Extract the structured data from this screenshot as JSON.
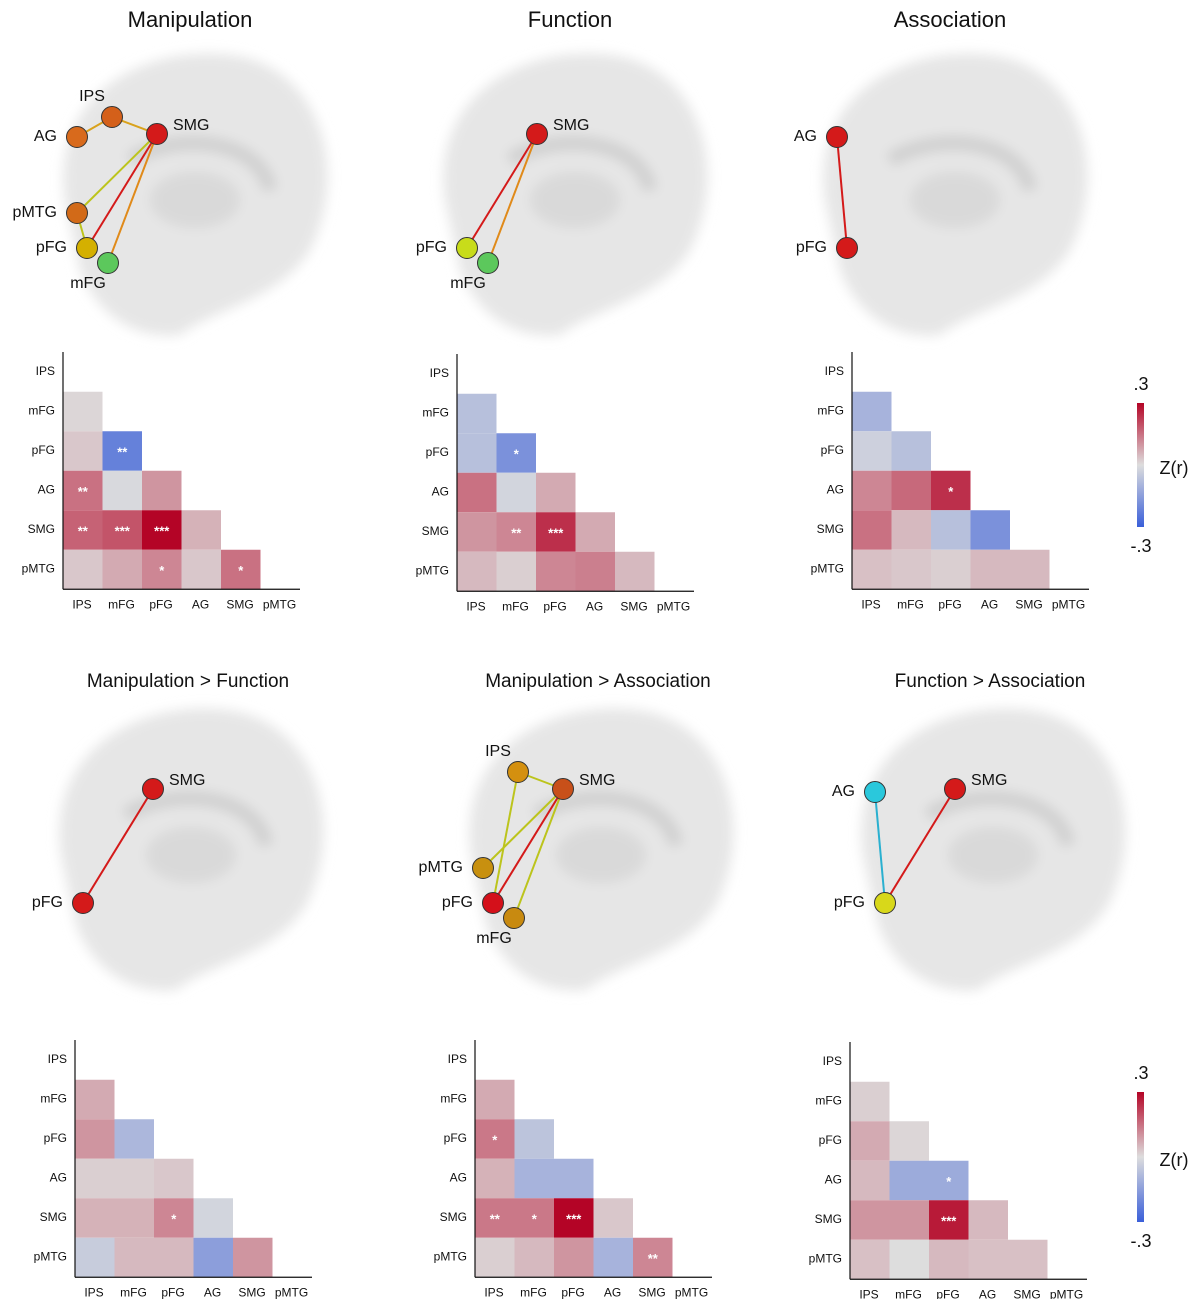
{
  "chart_data": [
    {
      "type": "heatmap",
      "title": "Manipulation",
      "network": {
        "nodes": [
          {
            "label": "IPS",
            "color": "#d4601a"
          },
          {
            "label": "AG",
            "color": "#d86a1c"
          },
          {
            "label": "SMG",
            "color": "#d41a1a"
          },
          {
            "label": "pMTG",
            "color": "#d26a18"
          },
          {
            "label": "pFG",
            "color": "#d4b000"
          },
          {
            "label": "mFG",
            "color": "#5cc85c"
          }
        ],
        "edges": [
          {
            "from": "AG",
            "to": "IPS",
            "color": "#d9a21c"
          },
          {
            "from": "IPS",
            "to": "SMG",
            "color": "#d9a21c"
          },
          {
            "from": "SMG",
            "to": "pMTG",
            "color": "#bcc41c"
          },
          {
            "from": "SMG",
            "to": "pFG",
            "color": "#d41a1a"
          },
          {
            "from": "SMG",
            "to": "mFG",
            "color": "#e08a1a"
          },
          {
            "from": "pMTG",
            "to": "pFG",
            "color": "#bcc41c"
          }
        ]
      },
      "categories": [
        "IPS",
        "mFG",
        "pFG",
        "AG",
        "SMG",
        "pMTG"
      ],
      "values": [
        [],
        [
          0.01
        ],
        [
          0.03,
          -0.22
        ],
        [
          0.15,
          -0.01,
          0.1
        ],
        [
          0.17,
          0.19,
          0.3,
          0.06
        ],
        [
          0.03,
          0.07,
          0.12,
          0.03,
          0.15
        ]
      ],
      "stars": [
        [],
        [
          null
        ],
        [
          null,
          "**"
        ],
        [
          "**",
          null,
          null
        ],
        [
          "**",
          "***",
          "***",
          null
        ],
        [
          null,
          null,
          "*",
          null,
          "*"
        ]
      ],
      "zlim": [
        -0.3,
        0.3
      ],
      "cmap": [
        "#3a5fd9",
        "#dddddd",
        "#b40426"
      ]
    },
    {
      "type": "heatmap",
      "title": "Function",
      "network": {
        "nodes": [
          {
            "label": "SMG",
            "color": "#d41a1a"
          },
          {
            "label": "pFG",
            "color": "#c8dc1a"
          },
          {
            "label": "mFG",
            "color": "#5cc85c"
          }
        ],
        "edges": [
          {
            "from": "SMG",
            "to": "pFG",
            "color": "#d41a1a"
          },
          {
            "from": "SMG",
            "to": "mFG",
            "color": "#e08a1a"
          }
        ]
      },
      "categories": [
        "IPS",
        "mFG",
        "pFG",
        "AG",
        "SMG",
        "pMTG"
      ],
      "values": [
        [],
        [
          -0.07
        ],
        [
          -0.07,
          -0.18
        ],
        [
          0.15,
          -0.02,
          0.07
        ],
        [
          0.1,
          0.12,
          0.24,
          0.07
        ],
        [
          0.05,
          0.02,
          0.12,
          0.13,
          0.05
        ]
      ],
      "stars": [
        [],
        [
          null
        ],
        [
          null,
          "*"
        ],
        [
          null,
          null,
          null
        ],
        [
          null,
          "**",
          "***",
          null
        ],
        [
          null,
          null,
          null,
          null,
          null
        ]
      ],
      "zlim": [
        -0.3,
        0.3
      ],
      "cmap": [
        "#3a5fd9",
        "#dddddd",
        "#b40426"
      ]
    },
    {
      "type": "heatmap",
      "title": "Association",
      "network": {
        "nodes": [
          {
            "label": "AG",
            "color": "#d41a1a"
          },
          {
            "label": "pFG",
            "color": "#d41a1a"
          }
        ],
        "edges": [
          {
            "from": "AG",
            "to": "pFG",
            "color": "#d41a1a"
          }
        ]
      },
      "categories": [
        "IPS",
        "mFG",
        "pFG",
        "AG",
        "SMG",
        "pMTG"
      ],
      "values": [
        [],
        [
          -0.1
        ],
        [
          -0.03,
          -0.07
        ],
        [
          0.12,
          0.16,
          0.24
        ],
        [
          0.15,
          0.05,
          -0.07,
          -0.18
        ],
        [
          0.04,
          0.03,
          0.02,
          0.05,
          0.05
        ]
      ],
      "stars": [
        [],
        [
          null
        ],
        [
          null,
          null
        ],
        [
          null,
          null,
          "*"
        ],
        [
          null,
          null,
          null,
          null
        ],
        [
          null,
          null,
          null,
          null,
          null
        ]
      ],
      "zlim": [
        -0.3,
        0.3
      ],
      "cmap": [
        "#3a5fd9",
        "#dddddd",
        "#b40426"
      ],
      "colorbar": {
        "label": "Z(r)",
        "ticks": [
          {
            "value": 0.3,
            "label": ".3"
          },
          {
            "value": -0.3,
            "label": "-.3"
          }
        ]
      }
    },
    {
      "type": "heatmap",
      "title": "Manipulation > Function",
      "network": {
        "nodes": [
          {
            "label": "SMG",
            "color": "#d41a1a"
          },
          {
            "label": "pFG",
            "color": "#d41a1a"
          }
        ],
        "edges": [
          {
            "from": "SMG",
            "to": "pFG",
            "color": "#d41a1a"
          }
        ]
      },
      "categories": [
        "IPS",
        "mFG",
        "pFG",
        "AG",
        "SMG",
        "pMTG"
      ],
      "values": [
        [],
        [
          0.07
        ],
        [
          0.1,
          -0.09
        ],
        [
          0.02,
          0.02,
          0.03
        ],
        [
          0.06,
          0.06,
          0.12,
          -0.02
        ],
        [
          -0.04,
          0.05,
          0.05,
          -0.15,
          0.1
        ]
      ],
      "stars": [
        [],
        [
          null
        ],
        [
          null,
          null
        ],
        [
          null,
          null,
          null
        ],
        [
          null,
          null,
          "*",
          null
        ],
        [
          null,
          null,
          null,
          null,
          null
        ]
      ],
      "zlim": [
        -0.3,
        0.3
      ],
      "cmap": [
        "#3a5fd9",
        "#dddddd",
        "#b40426"
      ]
    },
    {
      "type": "heatmap",
      "title": "Manipulation > Association",
      "network": {
        "nodes": [
          {
            "label": "IPS",
            "color": "#d4900f"
          },
          {
            "label": "SMG",
            "color": "#c8501a"
          },
          {
            "label": "pMTG",
            "color": "#c8900f"
          },
          {
            "label": "pFG",
            "color": "#d4101a"
          },
          {
            "label": "mFG",
            "color": "#c88a10"
          }
        ],
        "edges": [
          {
            "from": "IPS",
            "to": "SMG",
            "color": "#bcc41c"
          },
          {
            "from": "IPS",
            "to": "pFG",
            "color": "#bcc41c"
          },
          {
            "from": "SMG",
            "to": "pMTG",
            "color": "#bcc41c"
          },
          {
            "from": "SMG",
            "to": "pFG",
            "color": "#d41a1a"
          },
          {
            "from": "SMG",
            "to": "mFG",
            "color": "#bcc41c"
          }
        ]
      },
      "categories": [
        "IPS",
        "mFG",
        "pFG",
        "AG",
        "SMG",
        "pMTG"
      ],
      "values": [
        [],
        [
          0.07
        ],
        [
          0.14,
          -0.06
        ],
        [
          0.06,
          -0.1,
          -0.1
        ],
        [
          0.14,
          0.14,
          0.3,
          0.03
        ],
        [
          0.02,
          0.05,
          0.1,
          -0.1,
          0.12
        ]
      ],
      "stars": [
        [],
        [
          null
        ],
        [
          "*",
          null
        ],
        [
          null,
          null,
          null
        ],
        [
          "**",
          "*",
          "***",
          null
        ],
        [
          null,
          null,
          null,
          null,
          "**"
        ]
      ],
      "zlim": [
        -0.3,
        0.3
      ],
      "cmap": [
        "#3a5fd9",
        "#dddddd",
        "#b40426"
      ]
    },
    {
      "type": "heatmap",
      "title": "Function > Association",
      "network": {
        "nodes": [
          {
            "label": "AG",
            "color": "#2ac8dc"
          },
          {
            "label": "SMG",
            "color": "#d41a1a"
          },
          {
            "label": "pFG",
            "color": "#d8d81a"
          }
        ],
        "edges": [
          {
            "from": "AG",
            "to": "pFG",
            "color": "#2ab0d0"
          },
          {
            "from": "SMG",
            "to": "pFG",
            "color": "#d41a1a"
          }
        ]
      },
      "categories": [
        "IPS",
        "mFG",
        "pFG",
        "AG",
        "SMG",
        "pMTG"
      ],
      "values": [
        [],
        [
          0.02
        ],
        [
          0.07,
          0.01
        ],
        [
          0.05,
          -0.12,
          -0.12
        ],
        [
          0.1,
          0.1,
          0.27,
          0.05
        ],
        [
          0.04,
          0.0,
          0.05,
          0.04,
          0.04
        ]
      ],
      "stars": [
        [],
        [
          null
        ],
        [
          null,
          null
        ],
        [
          null,
          null,
          "*"
        ],
        [
          null,
          null,
          "***",
          null
        ],
        [
          null,
          null,
          null,
          null,
          null
        ]
      ],
      "zlim": [
        -0.3,
        0.3
      ],
      "cmap": [
        "#3a5fd9",
        "#dddddd",
        "#b40426"
      ],
      "colorbar": {
        "label": "Z(r)",
        "ticks": [
          {
            "value": 0.3,
            "label": ".3"
          },
          {
            "value": -0.3,
            "label": "-.3"
          }
        ]
      }
    }
  ]
}
